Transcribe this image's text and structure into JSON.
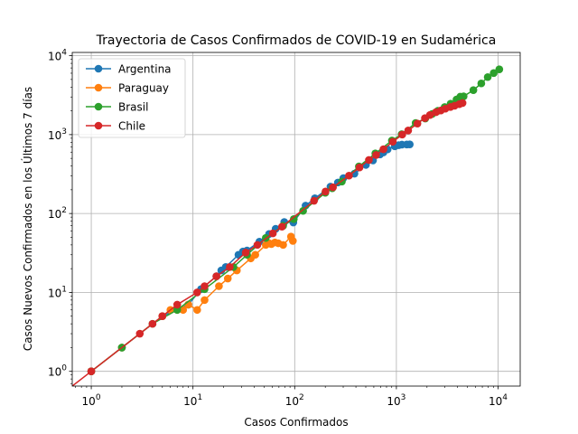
{
  "chart_data": {
    "type": "line",
    "title": "Trayectoria de Casos Confirmados de COVID-19 en Sudamérica",
    "xlabel": "Casos Confirmados",
    "ylabel": "Casos Nuevos Confirmados en los Últimos 7 días",
    "xscale": "log",
    "yscale": "log",
    "xlim": [
      0.65,
      16500
    ],
    "ylim": [
      0.65,
      11000
    ],
    "grid": true,
    "legend_position": "top-left",
    "x_ticks": [
      {
        "value": 1,
        "base": "10",
        "exp": "0"
      },
      {
        "value": 10,
        "base": "10",
        "exp": "1"
      },
      {
        "value": 100,
        "base": "10",
        "exp": "2"
      },
      {
        "value": 1000,
        "base": "10",
        "exp": "3"
      },
      {
        "value": 10000,
        "base": "10",
        "exp": "4"
      }
    ],
    "y_ticks": [
      {
        "value": 1,
        "base": "10",
        "exp": "0"
      },
      {
        "value": 10,
        "base": "10",
        "exp": "1"
      },
      {
        "value": 100,
        "base": "10",
        "exp": "2"
      },
      {
        "value": 1000,
        "base": "10",
        "exp": "3"
      },
      {
        "value": 10000,
        "base": "10",
        "exp": "4"
      }
    ],
    "series": [
      {
        "name": "Argentina",
        "color": "#1f77b4",
        "x": [
          1,
          2,
          5,
          9,
          12,
          17,
          19,
          21,
          28,
          31,
          34,
          45,
          56,
          65,
          79,
          97,
          128,
          158,
          225,
          266,
          301,
          387,
          502,
          589,
          690,
          745,
          820,
          966,
          1054,
          1133,
          1265,
          1353
        ],
        "y": [
          1,
          2,
          5,
          7,
          11,
          16,
          19,
          21,
          30,
          33,
          34,
          44,
          55,
          64,
          78,
          77,
          126,
          156,
          219,
          247,
          281,
          320,
          413,
          470,
          560,
          594,
          650,
          710,
          735,
          746,
          750,
          752
        ]
      },
      {
        "name": "Paraguay",
        "color": "#ff7f0e",
        "x": [
          1,
          2,
          5,
          6,
          7,
          8,
          9,
          11,
          13,
          18,
          22,
          27,
          37,
          41,
          52,
          56,
          59,
          64,
          69,
          77,
          92,
          96
        ],
        "y": [
          1,
          2,
          5,
          6,
          6,
          6,
          7,
          6,
          8,
          12,
          15,
          19,
          27,
          30,
          40,
          42,
          41,
          43,
          42,
          40,
          51,
          45
        ]
      },
      {
        "name": "Brasil",
        "color": "#2ca02c",
        "x": [
          1,
          2,
          4,
          7,
          13,
          25,
          34,
          52,
          77,
          98,
          121,
          200,
          234,
          291,
          428,
          621,
          904,
          1128,
          1546,
          1924,
          2247,
          2554,
          2985,
          3417,
          3904,
          4256,
          4579,
          5717,
          6836,
          7910,
          9056,
          10278
        ],
        "y": [
          1,
          2,
          4,
          6,
          11,
          21,
          30,
          49,
          70,
          85,
          108,
          183,
          209,
          254,
          395,
          577,
          841,
          1011,
          1404,
          1601,
          1825,
          2000,
          2235,
          2464,
          2783,
          3026,
          3051,
          3663,
          4456,
          5358,
          6022,
          6719
        ]
      },
      {
        "name": "Chile",
        "color": "#d62728",
        "x": [
          1,
          3,
          4,
          5,
          7,
          11,
          13,
          17,
          23,
          33,
          43,
          61,
          75,
          155,
          201,
          238,
          342,
          434,
          537,
          632,
          746,
          922,
          1142,
          1306,
          1610,
          1909,
          2139,
          2449,
          2738,
          3031,
          3404,
          3737,
          4161,
          4471
        ],
        "y": [
          1,
          3,
          4,
          5,
          7,
          10,
          12,
          16,
          21,
          32,
          40,
          56,
          68,
          145,
          190,
          215,
          302,
          384,
          477,
          552,
          652,
          812,
          1000,
          1127,
          1380,
          1618,
          1771,
          1924,
          2023,
          2129,
          2242,
          2322,
          2432,
          2513
        ]
      }
    ]
  }
}
